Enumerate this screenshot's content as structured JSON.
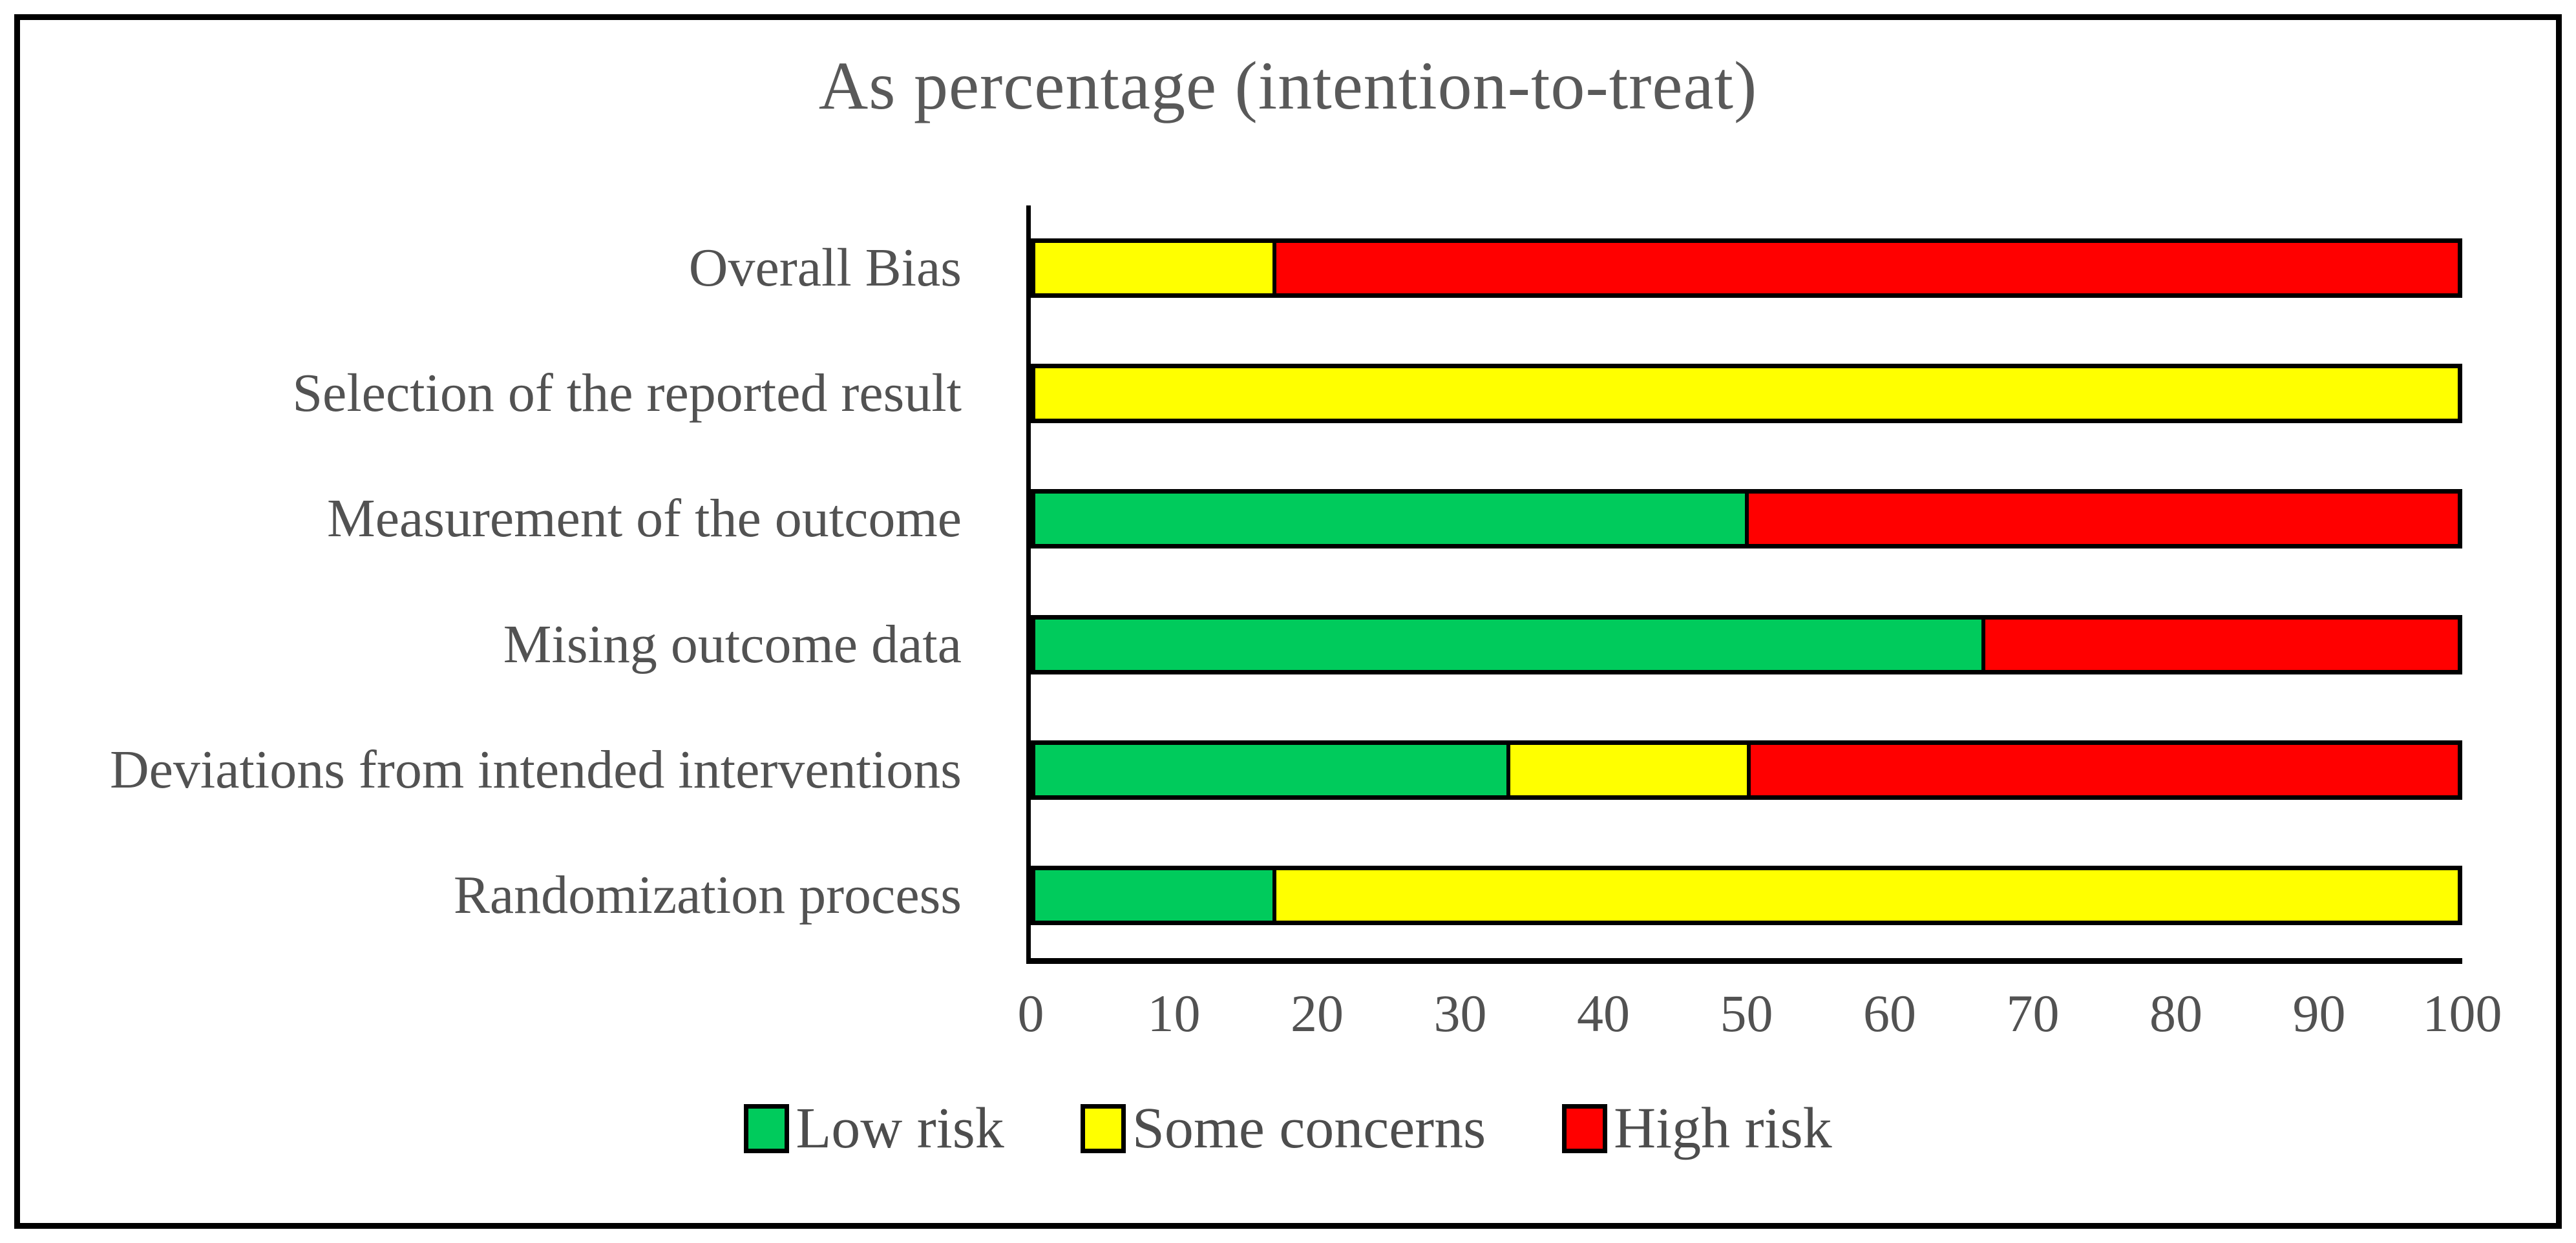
{
  "title": "As percentage (intention-to-treat)",
  "chart_data": {
    "type": "bar",
    "orientation": "horizontal",
    "stacked": true,
    "unit": "percent",
    "title": "As percentage (intention-to-treat)",
    "xlabel": "",
    "ylabel": "",
    "xlim": [
      0,
      100
    ],
    "grid": false,
    "legend_position": "bottom",
    "x_ticks": [
      "0",
      "10",
      "20",
      "30",
      "40",
      "50",
      "60",
      "70",
      "80",
      "90",
      "100"
    ],
    "x_tick_values": [
      0,
      10,
      20,
      30,
      40,
      50,
      60,
      70,
      80,
      90,
      100
    ],
    "categories_top_to_bottom": [
      "Overall Bias",
      "Selection of the reported result",
      "Measurement of the outcome",
      "Mising outcome data",
      "Deviations from intended interventions",
      "Randomization process"
    ],
    "series": [
      {
        "name": "Low risk",
        "color": "#00CB5C",
        "values": [
          0,
          0,
          50,
          66.7,
          33.3,
          16.7
        ]
      },
      {
        "name": "Some concerns",
        "color": "#FFFF00",
        "values": [
          16.7,
          100,
          0,
          0,
          16.7,
          83.3
        ]
      },
      {
        "name": "High risk",
        "color": "#FF0000",
        "values": [
          83.3,
          0,
          50,
          33.3,
          50,
          0
        ]
      }
    ],
    "colors": {
      "low_risk": "#00CB5C",
      "some_concerns": "#FFFF00",
      "high_risk": "#FF0000",
      "axis": "#000000",
      "text": "#525252"
    }
  }
}
